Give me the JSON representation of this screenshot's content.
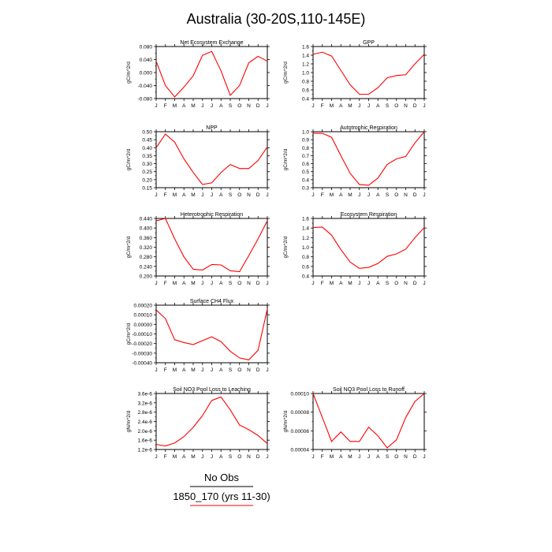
{
  "title": "Australia (30-20S,110-145E)",
  "legend": {
    "entries": [
      {
        "label": "No Obs",
        "color": "#000000"
      },
      {
        "label": "1850_170 (yrs 11-30)",
        "color": "#ff0000"
      }
    ]
  },
  "chart_data": [
    {
      "type": "line",
      "title": "Net Ecosystem Exchange",
      "ylabel": "gC/m^2/d",
      "categories": [
        "J",
        "F",
        "M",
        "A",
        "M",
        "J",
        "J",
        "A",
        "S",
        "O",
        "N",
        "D",
        "J"
      ],
      "yticks": [
        "0.080",
        "0.040",
        "0.000",
        "-0.040",
        "-0.080"
      ],
      "ylim": [
        -0.08,
        0.08
      ],
      "series": [
        {
          "color": "#ff0000",
          "values": [
            0.035,
            -0.04,
            -0.075,
            -0.045,
            -0.01,
            0.053,
            0.065,
            0.005,
            -0.07,
            -0.04,
            0.03,
            0.05,
            0.035
          ]
        }
      ]
    },
    {
      "type": "line",
      "title": "GPP",
      "ylabel": "gC/m^2/d",
      "categories": [
        "J",
        "F",
        "M",
        "A",
        "M",
        "J",
        "J",
        "A",
        "S",
        "O",
        "N",
        "D",
        "J"
      ],
      "yticks": [
        "1.6",
        "1.4",
        "1.2",
        "1.0",
        "0.8",
        "0.6",
        "0.4"
      ],
      "ylim": [
        0.4,
        1.6
      ],
      "series": [
        {
          "color": "#ff0000",
          "values": [
            1.42,
            1.47,
            1.38,
            1.05,
            0.72,
            0.5,
            0.5,
            0.65,
            0.88,
            0.93,
            0.95,
            1.2,
            1.42
          ]
        }
      ]
    },
    {
      "type": "line",
      "title": "NPP",
      "ylabel": "gC/m^2/d",
      "categories": [
        "J",
        "F",
        "M",
        "A",
        "M",
        "J",
        "J",
        "A",
        "S",
        "O",
        "N",
        "D",
        "J"
      ],
      "yticks": [
        "0.50",
        "0.45",
        "0.40",
        "0.35",
        "0.30",
        "0.25",
        "0.20",
        "0.15"
      ],
      "ylim": [
        0.15,
        0.5
      ],
      "series": [
        {
          "color": "#ff0000",
          "values": [
            0.4,
            0.485,
            0.435,
            0.33,
            0.245,
            0.17,
            0.18,
            0.245,
            0.295,
            0.27,
            0.27,
            0.32,
            0.405
          ]
        }
      ]
    },
    {
      "type": "line",
      "title": "Autotrophic Respiration",
      "ylabel": "gC/m^2/d",
      "categories": [
        "J",
        "F",
        "M",
        "A",
        "M",
        "J",
        "J",
        "A",
        "S",
        "O",
        "N",
        "D",
        "J"
      ],
      "yticks": [
        "1.0",
        "0.9",
        "0.8",
        "0.7",
        "0.6",
        "0.5",
        "0.4",
        "0.3"
      ],
      "ylim": [
        0.3,
        1.0
      ],
      "series": [
        {
          "color": "#ff0000",
          "values": [
            0.98,
            0.98,
            0.93,
            0.7,
            0.48,
            0.34,
            0.33,
            0.42,
            0.59,
            0.66,
            0.69,
            0.86,
            1.0
          ]
        }
      ]
    },
    {
      "type": "line",
      "title": "Heterotrophic Respiration",
      "ylabel": "gC/m^2/d",
      "categories": [
        "J",
        "F",
        "M",
        "A",
        "M",
        "J",
        "J",
        "A",
        "S",
        "O",
        "N",
        "D",
        "J"
      ],
      "yticks": [
        "0.440",
        "0.400",
        "0.360",
        "0.320",
        "0.280",
        "0.240",
        "0.200"
      ],
      "ylim": [
        0.2,
        0.44
      ],
      "series": [
        {
          "color": "#ff0000",
          "values": [
            0.43,
            0.44,
            0.355,
            0.28,
            0.228,
            0.225,
            0.248,
            0.246,
            0.222,
            0.218,
            0.285,
            0.355,
            0.43
          ]
        }
      ]
    },
    {
      "type": "line",
      "title": "Ecosystem Respiration",
      "ylabel": "gC/m^2/d",
      "categories": [
        "J",
        "F",
        "M",
        "A",
        "M",
        "J",
        "J",
        "A",
        "S",
        "O",
        "N",
        "D",
        "J"
      ],
      "yticks": [
        "1.6",
        "1.4",
        "1.2",
        "1.0",
        "0.8",
        "0.6",
        "0.4"
      ],
      "ylim": [
        0.4,
        1.6
      ],
      "series": [
        {
          "color": "#ff0000",
          "values": [
            1.41,
            1.42,
            1.25,
            0.95,
            0.69,
            0.56,
            0.58,
            0.66,
            0.81,
            0.86,
            0.96,
            1.2,
            1.41
          ]
        }
      ]
    },
    {
      "type": "line",
      "title": "Surface CH4 Flux",
      "ylabel": "gC/m^2/d",
      "categories": [
        "J",
        "F",
        "M",
        "A",
        "M",
        "J",
        "J",
        "A",
        "S",
        "O",
        "N",
        "D",
        "J"
      ],
      "yticks": [
        "0.00020",
        "0.00010",
        "0.00000",
        "-0.00010",
        "-0.00020",
        "-0.00030",
        "-0.00040"
      ],
      "ylim": [
        -0.0004,
        0.0002
      ],
      "series": [
        {
          "color": "#ff0000",
          "values": [
            0.00015,
            6e-05,
            -0.00016,
            -0.00019,
            -0.00021,
            -0.00017,
            -0.00013,
            -0.00018,
            -0.00028,
            -0.00035,
            -0.00037,
            -0.00027,
            0.00016
          ]
        }
      ]
    },
    {
      "type": "line",
      "title": "Soil NO3 Pool Loss to Leaching",
      "ylabel": "gN/m^2/d",
      "categories": [
        "J",
        "F",
        "M",
        "A",
        "M",
        "J",
        "J",
        "A",
        "S",
        "O",
        "N",
        "D",
        "J"
      ],
      "yticks": [
        "3.6e-6",
        "3.2e-6",
        "2.8e-6",
        "2.4e-6",
        "2.0e-6",
        "1.6e-6",
        "1.2e-6"
      ],
      "ylim": [
        1.2e-06,
        3.6e-06
      ],
      "series": [
        {
          "color": "#ff0000",
          "values": [
            1.42e-06,
            1.35e-06,
            1.48e-06,
            1.75e-06,
            2.15e-06,
            2.65e-06,
            3.3e-06,
            3.45e-06,
            2.9e-06,
            2.25e-06,
            2.05e-06,
            1.8e-06,
            1.45e-06
          ]
        }
      ]
    },
    {
      "type": "line",
      "title": "Soil NO3 Pool Loss to Runoff",
      "ylabel": "gN/m^2/d",
      "categories": [
        "J",
        "F",
        "M",
        "A",
        "M",
        "J",
        "J",
        "A",
        "S",
        "O",
        "N",
        "D",
        "J"
      ],
      "yticks": [
        "0.00010",
        "0.00008",
        "0.00006",
        "0.00004"
      ],
      "ylim": [
        4e-05,
        0.00011
      ],
      "series": [
        {
          "color": "#ff0000",
          "values": [
            0.00011,
            8e-05,
            5e-05,
            6.2e-05,
            5e-05,
            5e-05,
            6.8e-05,
            5.7e-05,
            4.2e-05,
            5.2e-05,
            8e-05,
            0.0001,
            0.00011
          ]
        }
      ]
    }
  ]
}
